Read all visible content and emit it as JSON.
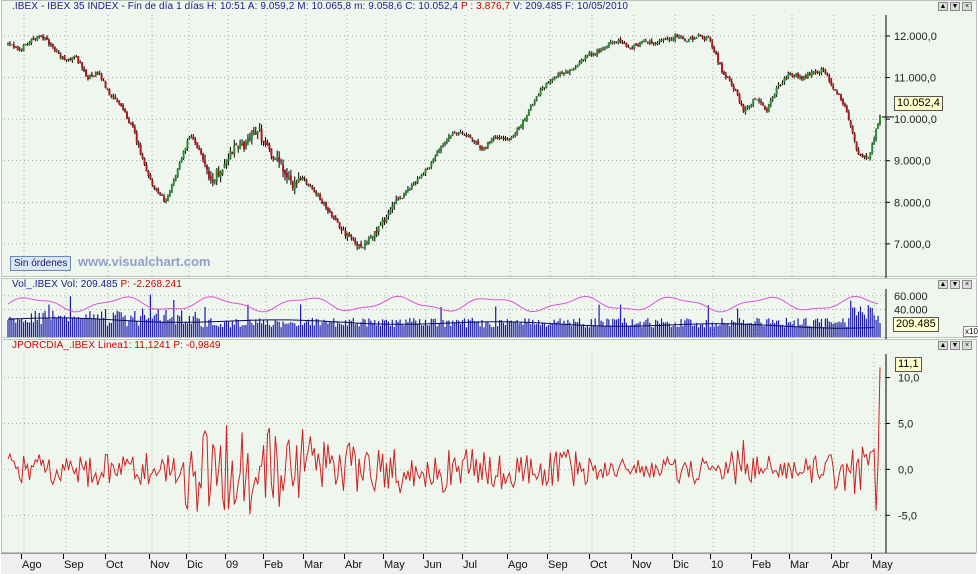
{
  "colors": {
    "up": "#2f8a2f",
    "down": "#b01818",
    "wick": "#000000",
    "volume": "#1a1ab0",
    "oscillator": "#cc2222",
    "pink": "#dd55dd",
    "background": "#eef6ee",
    "grid": "#7a7a7a"
  },
  "price_panel": {
    "header": {
      "symbol": ".IBEX - IBEX 35 INDEX - Fin de día 1 días",
      "h": "H: 10:51",
      "a": "A: 9.059,2",
      "m": "M: 10.065,8",
      "mn": "m: 9.058,6",
      "c": "C: 10.052,4",
      "p": "P : 3.876,7",
      "v": "V: 209.485",
      "f": "F: 10/05/2010"
    },
    "last_value": "10.052,4",
    "orders_button": "Sin órdenes",
    "watermark": "www.visualchart.com"
  },
  "volume_panel": {
    "header": {
      "name": "Vol_.IBEX",
      "vol": "Vol: 209.485",
      "p": "P: -2.268.241"
    },
    "last_value": "209.485",
    "multiplier": "x10"
  },
  "osc_panel": {
    "header": {
      "name": "JPORCDIA_.IBEX",
      "linea": "Linea1: 11,1241",
      "p": "P: -0,9849"
    },
    "last_value": "11,1"
  },
  "window_buttons": [
    "▲",
    "▼",
    "×"
  ],
  "chart_data": [
    {
      "type": "candlestick",
      "title": ".IBEX - IBEX 35 INDEX - Fin de día 1 días",
      "ylim": [
        6300,
        12600
      ],
      "yticks": [
        "12.000,0",
        "11.000,0",
        "10.000,0",
        "9.000,0",
        "8.000,0",
        "7.000,0"
      ],
      "ytick_values": [
        12000,
        11000,
        10000,
        9000,
        8000,
        7000
      ],
      "x_categories": [
        "Ago",
        "Sep",
        "Oct",
        "Nov",
        "Dic",
        "09",
        "Feb",
        "Mar",
        "Abr",
        "May",
        "Jun",
        "Jul",
        "Ago",
        "Sep",
        "Oct",
        "Nov",
        "Dic",
        "10",
        "Feb",
        "Mar",
        "Abr",
        "May"
      ],
      "close_path": [
        11800,
        11650,
        11900,
        12000,
        11700,
        11400,
        11500,
        11000,
        11100,
        10600,
        10300,
        9800,
        8900,
        8300,
        8000,
        8800,
        9600,
        9200,
        8500,
        8900,
        9300,
        9400,
        9800,
        9300,
        8900,
        8400,
        8600,
        8300,
        7900,
        7500,
        7200,
        6950,
        7100,
        7500,
        7900,
        8200,
        8500,
        8800,
        9200,
        9600,
        9700,
        9500,
        9300,
        9600,
        9500,
        9700,
        10200,
        10700,
        11000,
        11100,
        11200,
        11500,
        11600,
        11800,
        11900,
        11700,
        11900,
        11800,
        11900,
        12000,
        11900,
        12000,
        11900,
        11200,
        10800,
        10200,
        10500,
        10200,
        10800,
        11100,
        11000,
        11100,
        11200,
        10700,
        10300,
        9200,
        9050,
        10052
      ]
    },
    {
      "type": "bar",
      "title": "Vol_.IBEX",
      "yticks": [
        "60.000",
        "40.000"
      ],
      "ytick_values": [
        60000,
        40000
      ],
      "last": 209485
    },
    {
      "type": "line",
      "title": "JPORCDIA_.IBEX",
      "ylim": [
        -9,
        13
      ],
      "yticks": [
        "10,0",
        "5,0",
        "0,0",
        "-5,0"
      ],
      "ytick_values": [
        10,
        5,
        0,
        -5
      ],
      "last": 11.1241
    }
  ]
}
